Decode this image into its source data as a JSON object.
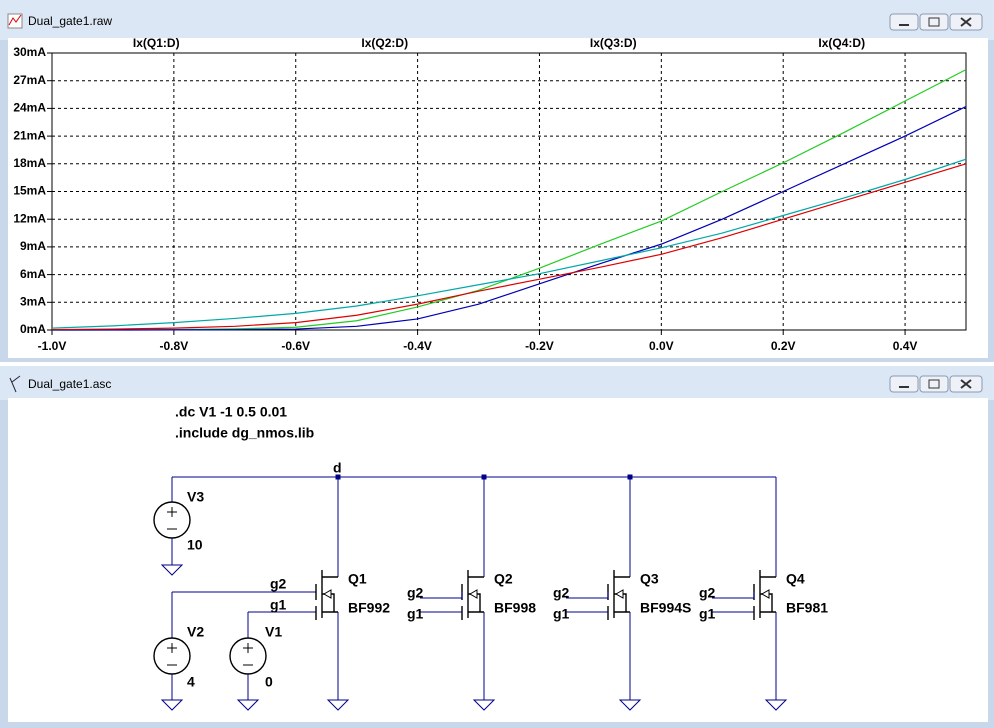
{
  "window_plot": {
    "title": "Dual_gate1.raw"
  },
  "chart_data": {
    "type": "line",
    "x": [
      -1.0,
      -0.9,
      -0.8,
      -0.7,
      -0.6,
      -0.5,
      -0.4,
      -0.3,
      -0.2,
      -0.1,
      0.0,
      0.1,
      0.2,
      0.3,
      0.4,
      0.5
    ],
    "series": [
      {
        "name": "Ix(Q1:D)",
        "color": "#22cc22",
        "values": [
          0,
          0.01,
          0.05,
          0.12,
          0.3,
          1.0,
          2.5,
          4.3,
          6.7,
          9.3,
          11.8,
          15.0,
          18.1,
          21.4,
          24.8,
          28.2
        ]
      },
      {
        "name": "Ix(Q2:D)",
        "color": "#0000b4",
        "values": [
          0,
          0,
          0.01,
          0.03,
          0.1,
          0.4,
          1.2,
          2.8,
          5.0,
          7.2,
          9.3,
          12.0,
          15.0,
          18.0,
          21.0,
          24.2
        ]
      },
      {
        "name": "Ix(Q3:D)",
        "color": "#dd0000",
        "values": [
          0.05,
          0.1,
          0.2,
          0.4,
          0.8,
          1.6,
          2.8,
          4.2,
          5.5,
          6.8,
          8.2,
          10.0,
          12.0,
          14.0,
          16.0,
          18.0
        ]
      },
      {
        "name": "Ix(Q4:D)",
        "color": "#00a8a8",
        "values": [
          0.2,
          0.45,
          0.8,
          1.25,
          1.8,
          2.6,
          3.7,
          4.9,
          6.1,
          7.5,
          8.9,
          10.5,
          12.4,
          14.3,
          16.3,
          18.5
        ]
      }
    ],
    "xlim": [
      -1.0,
      0.5
    ],
    "ylim": [
      0,
      30
    ],
    "xticks": [
      {
        "value": -1.0,
        "label": "-1.0V"
      },
      {
        "value": -0.8,
        "label": "-0.8V"
      },
      {
        "value": -0.6,
        "label": "-0.6V"
      },
      {
        "value": -0.4,
        "label": "-0.4V"
      },
      {
        "value": -0.2,
        "label": "-0.2V"
      },
      {
        "value": 0.0,
        "label": "0.0V"
      },
      {
        "value": 0.2,
        "label": "0.2V"
      },
      {
        "value": 0.4,
        "label": "0.4V"
      }
    ],
    "yticks": [
      {
        "value": 0,
        "label": "0mA"
      },
      {
        "value": 3,
        "label": "3mA"
      },
      {
        "value": 6,
        "label": "6mA"
      },
      {
        "value": 9,
        "label": "9mA"
      },
      {
        "value": 12,
        "label": "12mA"
      },
      {
        "value": 15,
        "label": "15mA"
      },
      {
        "value": 18,
        "label": "18mA"
      },
      {
        "value": 21,
        "label": "21mA"
      },
      {
        "value": 24,
        "label": "24mA"
      },
      {
        "value": 27,
        "label": "27mA"
      },
      {
        "value": 30,
        "label": "30mA"
      }
    ],
    "grid": true
  },
  "window_schematic": {
    "title": "Dual_gate1.asc",
    "directives": [
      ".dc V1 -1 0.5 0.01",
      ".include dg_nmos.lib"
    ],
    "net_label": "d",
    "sources": [
      {
        "name": "V3",
        "value": "10"
      },
      {
        "name": "V2",
        "value": "4"
      },
      {
        "name": "V1",
        "value": "0"
      }
    ],
    "transistors": [
      {
        "name": "Q1",
        "model": "BF992",
        "gate2": "g2",
        "gate1": "g1"
      },
      {
        "name": "Q2",
        "model": "BF998",
        "gate2": "g2",
        "gate1": "g1"
      },
      {
        "name": "Q3",
        "model": "BF994S",
        "gate2": "g2",
        "gate1": "g1"
      },
      {
        "name": "Q4",
        "model": "BF981",
        "gate2": "g2",
        "gate1": "g1"
      }
    ]
  }
}
